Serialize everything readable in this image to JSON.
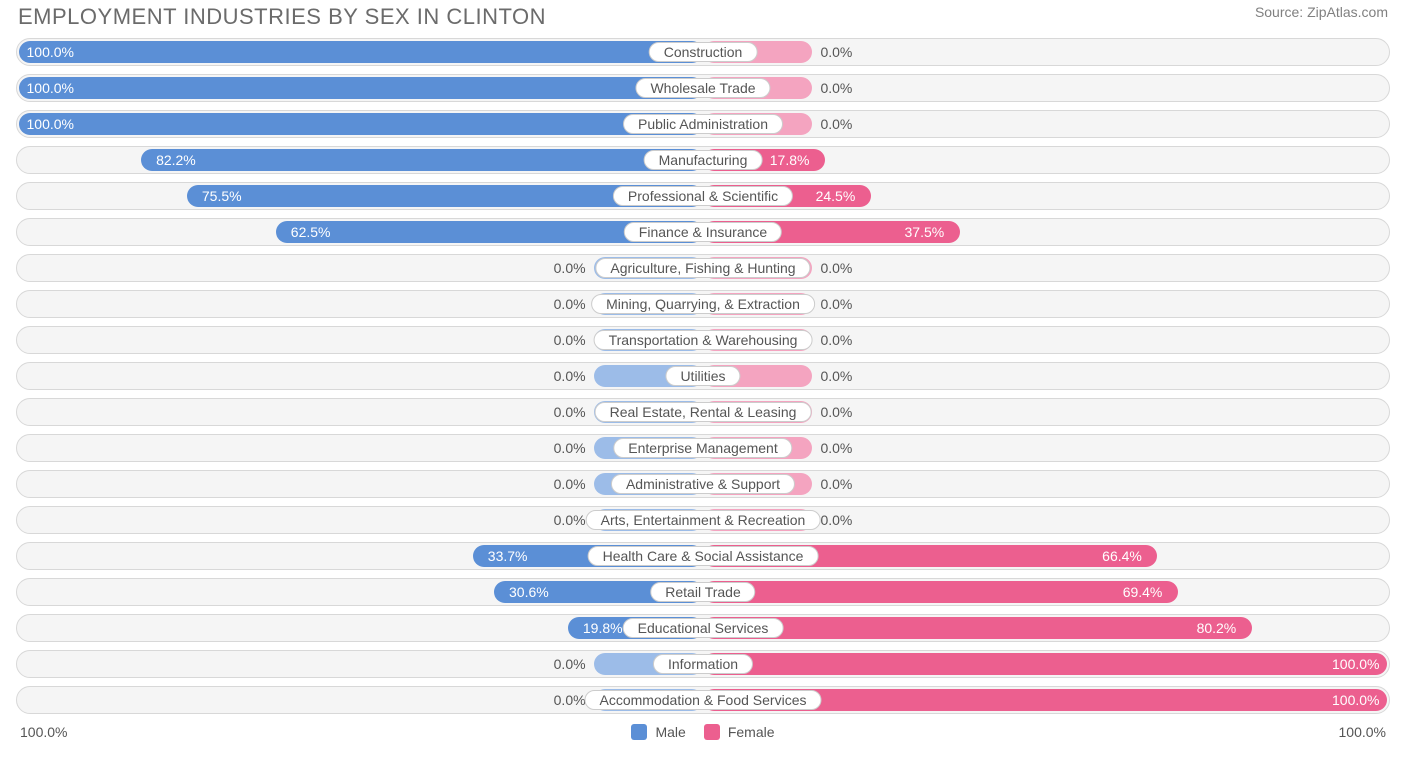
{
  "title": "EMPLOYMENT INDUSTRIES BY SEX IN CLINTON",
  "source": "Source: ZipAtlas.com",
  "colors": {
    "male_strong": "#5b8fd6",
    "male_soft": "#9cbce8",
    "female_strong": "#ec5f8f",
    "female_soft": "#f4a4c0",
    "row_bg": "#f5f5f5",
    "row_border": "#d8d8d8",
    "text": "#555555",
    "text_light": "#ffffff"
  },
  "axis": {
    "left": "100.0%",
    "right": "100.0%"
  },
  "legend": [
    {
      "label": "Male",
      "color": "#5b8fd6"
    },
    {
      "label": "Female",
      "color": "#ec5f8f"
    }
  ],
  "neutral_stub_pct": 16,
  "rows": [
    {
      "label": "Construction",
      "male": 100.0,
      "female": 0.0,
      "male_label": "100.0%",
      "female_label": "0.0%"
    },
    {
      "label": "Wholesale Trade",
      "male": 100.0,
      "female": 0.0,
      "male_label": "100.0%",
      "female_label": "0.0%"
    },
    {
      "label": "Public Administration",
      "male": 100.0,
      "female": 0.0,
      "male_label": "100.0%",
      "female_label": "0.0%"
    },
    {
      "label": "Manufacturing",
      "male": 82.2,
      "female": 17.8,
      "male_label": "82.2%",
      "female_label": "17.8%"
    },
    {
      "label": "Professional & Scientific",
      "male": 75.5,
      "female": 24.5,
      "male_label": "75.5%",
      "female_label": "24.5%"
    },
    {
      "label": "Finance & Insurance",
      "male": 62.5,
      "female": 37.5,
      "male_label": "62.5%",
      "female_label": "37.5%"
    },
    {
      "label": "Agriculture, Fishing & Hunting",
      "male": 0.0,
      "female": 0.0,
      "male_label": "0.0%",
      "female_label": "0.0%"
    },
    {
      "label": "Mining, Quarrying, & Extraction",
      "male": 0.0,
      "female": 0.0,
      "male_label": "0.0%",
      "female_label": "0.0%"
    },
    {
      "label": "Transportation & Warehousing",
      "male": 0.0,
      "female": 0.0,
      "male_label": "0.0%",
      "female_label": "0.0%"
    },
    {
      "label": "Utilities",
      "male": 0.0,
      "female": 0.0,
      "male_label": "0.0%",
      "female_label": "0.0%"
    },
    {
      "label": "Real Estate, Rental & Leasing",
      "male": 0.0,
      "female": 0.0,
      "male_label": "0.0%",
      "female_label": "0.0%"
    },
    {
      "label": "Enterprise Management",
      "male": 0.0,
      "female": 0.0,
      "male_label": "0.0%",
      "female_label": "0.0%"
    },
    {
      "label": "Administrative & Support",
      "male": 0.0,
      "female": 0.0,
      "male_label": "0.0%",
      "female_label": "0.0%"
    },
    {
      "label": "Arts, Entertainment & Recreation",
      "male": 0.0,
      "female": 0.0,
      "male_label": "0.0%",
      "female_label": "0.0%"
    },
    {
      "label": "Health Care & Social Assistance",
      "male": 33.7,
      "female": 66.4,
      "male_label": "33.7%",
      "female_label": "66.4%"
    },
    {
      "label": "Retail Trade",
      "male": 30.6,
      "female": 69.4,
      "male_label": "30.6%",
      "female_label": "69.4%"
    },
    {
      "label": "Educational Services",
      "male": 19.8,
      "female": 80.2,
      "male_label": "19.8%",
      "female_label": "80.2%"
    },
    {
      "label": "Information",
      "male": 0.0,
      "female": 100.0,
      "male_label": "0.0%",
      "female_label": "100.0%"
    },
    {
      "label": "Accommodation & Food Services",
      "male": 0.0,
      "female": 100.0,
      "male_label": "0.0%",
      "female_label": "100.0%"
    }
  ]
}
